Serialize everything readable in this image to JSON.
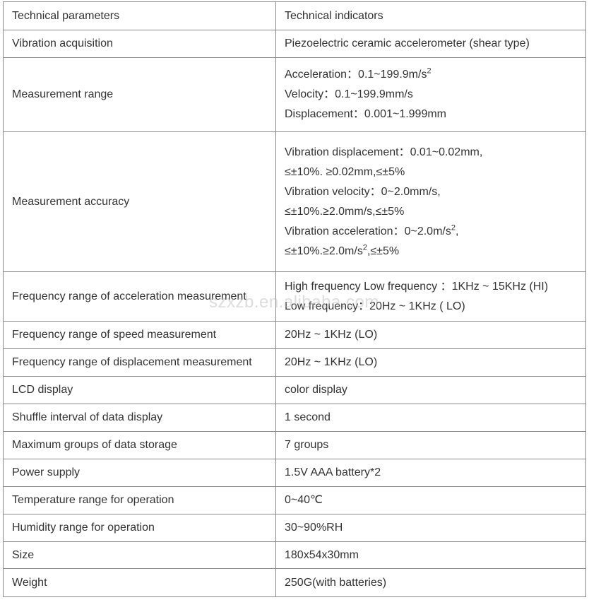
{
  "header": {
    "col1": "Technical parameters",
    "col2": "Technical indicators"
  },
  "rows": [
    {
      "param": "Vibration acquisition",
      "lines": [
        {
          "text": "Piezoelectric ceramic accelerometer (shear type)"
        }
      ]
    },
    {
      "param": "Measurement range",
      "lines": [
        {
          "text": "Acceleration：0.1~199.9m/s",
          "sup": "2"
        },
        {
          "text": "Velocity：0.1~199.9mm/s"
        },
        {
          "text": "Displacement：0.001~1.999mm"
        }
      ]
    },
    {
      "param": "Measurement accuracy",
      "lines": [
        {
          "text": "Vibration displacement：0.01~0.02mm,"
        },
        {
          "text": "≤±10%. ≥0.02mm,≤±5%"
        },
        {
          "text": "Vibration velocity：0~2.0mm/s,"
        },
        {
          "text": "≤±10%.≥2.0mm/s,≤±5%"
        },
        {
          "text": "Vibration acceleration：0~2.0m/s",
          "sup": "2",
          "after": ","
        },
        {
          "text": "≤±10%.≥2.0m/s",
          "sup": "2",
          "after": ",≤±5%"
        }
      ]
    },
    {
      "param": "Frequency range of acceleration measurement",
      "lines": [
        {
          "text": "High frequency Low frequency ：1KHz ~ 15KHz (HI)"
        },
        {
          "text": "Low frequency：20Hz ~ 1KHz ( LO)"
        }
      ]
    },
    {
      "param": "Frequency range of speed measurement",
      "lines": [
        {
          "text": "20Hz ~ 1KHz (LO)"
        }
      ]
    },
    {
      "param": "Frequency range of displacement measurement",
      "lines": [
        {
          "text": "20Hz ~ 1KHz (LO)"
        }
      ]
    },
    {
      "param": "LCD display",
      "lines": [
        {
          "text": "color display"
        }
      ]
    },
    {
      "param": "Shuffle interval of data display",
      "lines": [
        {
          "text": "1 second"
        }
      ]
    },
    {
      "param": "Maximum groups of data storage",
      "lines": [
        {
          "text": "7 groups"
        }
      ]
    },
    {
      "param": "Power supply",
      "lines": [
        {
          "text": "1.5V AAA battery*2"
        }
      ]
    },
    {
      "param": "Temperature range for operation",
      "lines": [
        {
          "text": "0~40℃"
        }
      ]
    },
    {
      "param": "Humidity range for operation",
      "lines": [
        {
          "text": "30~90%RH"
        }
      ]
    },
    {
      "param": "Size",
      "lines": [
        {
          "text": "180x54x30mm"
        }
      ]
    },
    {
      "param": "Weight",
      "lines": [
        {
          "text": "250G(with batteries)"
        }
      ]
    }
  ],
  "watermark": "szxzb.en.alibaba.com"
}
